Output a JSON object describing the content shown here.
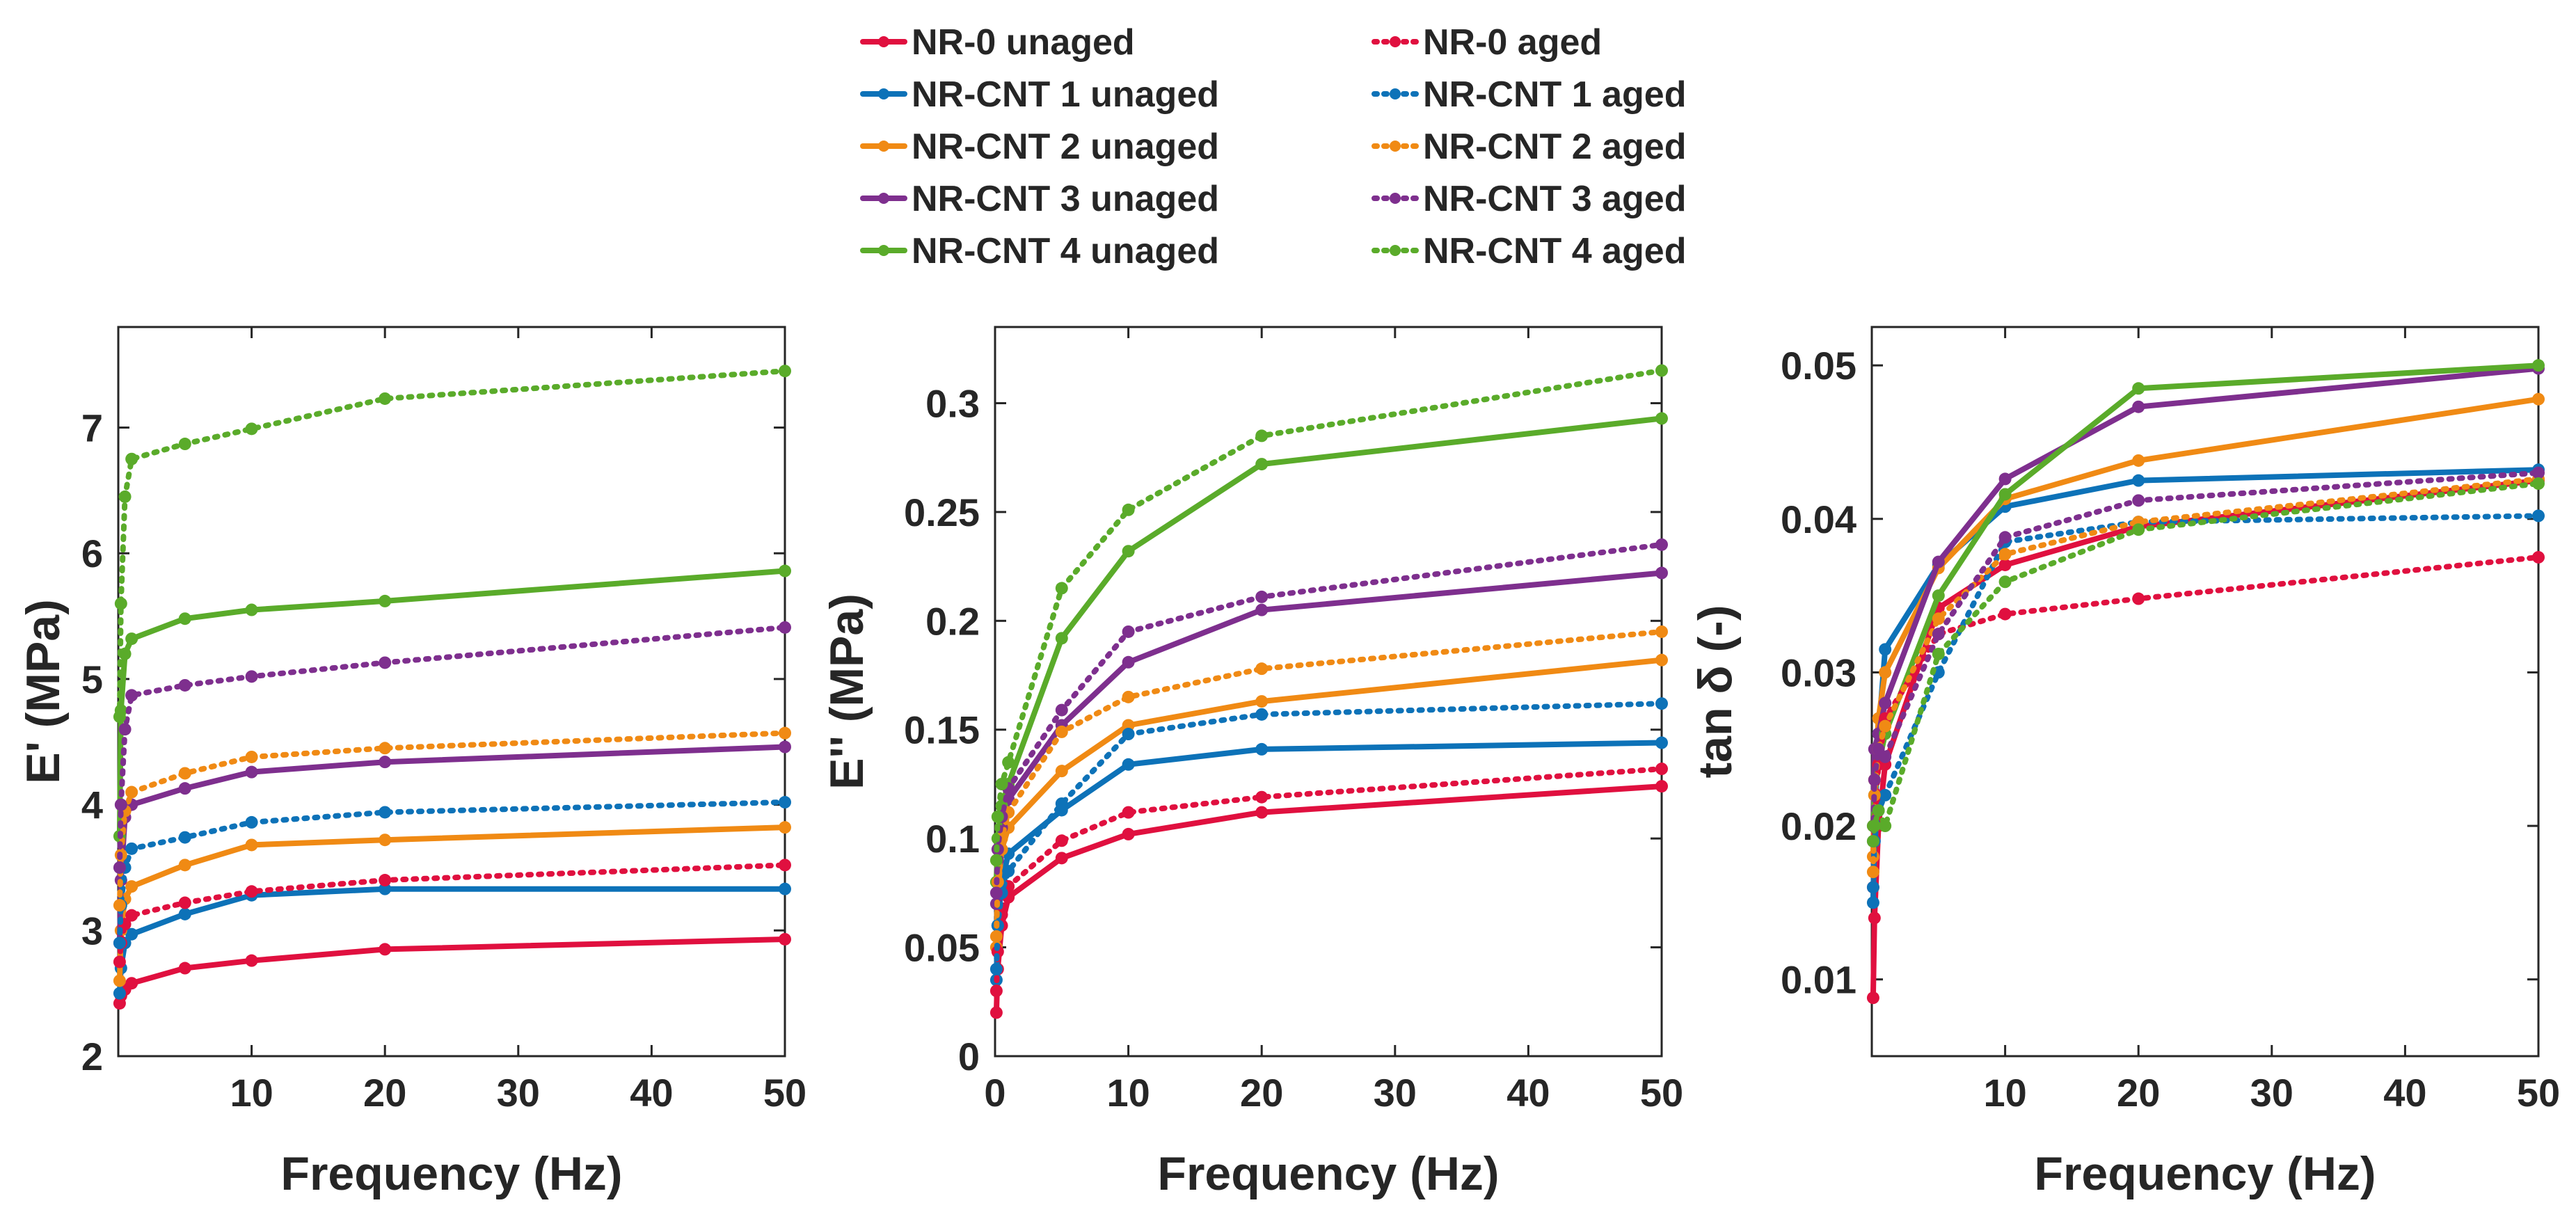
{
  "chart_data": {
    "type": "line",
    "colors": {
      "NR-0": "#e0103f",
      "NR-CNT 1": "#0d72b8",
      "NR-CNT 2": "#f08a14",
      "NR-CNT 3": "#7e2f8e",
      "NR-CNT 4": "#5aab2a"
    },
    "legend": {
      "placement": "top-center",
      "entries": [
        {
          "label": "NR-0 unaged",
          "color": "#e0103f",
          "style": "solid"
        },
        {
          "label": "NR-CNT 1 unaged",
          "color": "#0d72b8",
          "style": "solid"
        },
        {
          "label": "NR-CNT 2 unaged",
          "color": "#f08a14",
          "style": "solid"
        },
        {
          "label": "NR-CNT 3 unaged",
          "color": "#7e2f8e",
          "style": "solid"
        },
        {
          "label": "NR-CNT 4 unaged",
          "color": "#5aab2a",
          "style": "solid"
        },
        {
          "label": "NR-0 aged",
          "color": "#e0103f",
          "style": "dotted"
        },
        {
          "label": "NR-CNT 1 aged",
          "color": "#0d72b8",
          "style": "dotted"
        },
        {
          "label": "NR-CNT 2 aged",
          "color": "#f08a14",
          "style": "dotted"
        },
        {
          "label": "NR-CNT 3 aged",
          "color": "#7e2f8e",
          "style": "dotted"
        },
        {
          "label": "NR-CNT 4 aged",
          "color": "#5aab2a",
          "style": "dotted"
        }
      ]
    },
    "panels": [
      {
        "id": "storage-modulus",
        "xlabel": "Frequency (Hz)",
        "ylabel": "E' (MPa)",
        "xlim": [
          0,
          50
        ],
        "ylim": [
          2,
          7.8
        ],
        "xticks": [
          10,
          20,
          30,
          40,
          50
        ],
        "yticks": [
          2,
          3,
          4,
          5,
          6,
          7
        ],
        "x": [
          0.1,
          0.2,
          0.5,
          1,
          5,
          10,
          20,
          50
        ],
        "series": [
          {
            "name": "NR-0 unaged",
            "color": "#e0103f",
            "style": "solid",
            "values": [
              2.42,
              2.48,
              2.53,
              2.58,
              2.7,
              2.76,
              2.85,
              2.93
            ]
          },
          {
            "name": "NR-CNT 1 unaged",
            "color": "#0d72b8",
            "style": "solid",
            "values": [
              2.5,
              2.7,
              2.9,
              2.97,
              3.13,
              3.28,
              3.33,
              3.33
            ]
          },
          {
            "name": "NR-CNT 2 unaged",
            "color": "#f08a14",
            "style": "solid",
            "values": [
              2.6,
              3.0,
              3.25,
              3.35,
              3.52,
              3.68,
              3.72,
              3.82
            ]
          },
          {
            "name": "NR-CNT 3 unaged",
            "color": "#7e2f8e",
            "style": "solid",
            "values": [
              2.9,
              3.4,
              3.9,
              4.0,
              4.13,
              4.26,
              4.34,
              4.46
            ]
          },
          {
            "name": "NR-CNT 4 unaged",
            "color": "#5aab2a",
            "style": "solid",
            "values": [
              3.75,
              4.75,
              5.2,
              5.32,
              5.48,
              5.55,
              5.62,
              5.86
            ]
          },
          {
            "name": "NR-0 aged",
            "color": "#e0103f",
            "style": "dotted",
            "values": [
              2.75,
              2.9,
              3.05,
              3.12,
              3.22,
              3.31,
              3.4,
              3.52
            ]
          },
          {
            "name": "NR-CNT 1 aged",
            "color": "#0d72b8",
            "style": "dotted",
            "values": [
              2.9,
              3.2,
              3.5,
              3.65,
              3.74,
              3.86,
              3.94,
              4.02
            ]
          },
          {
            "name": "NR-CNT 2 aged",
            "color": "#f08a14",
            "style": "dotted",
            "values": [
              3.2,
              3.6,
              3.95,
              4.1,
              4.25,
              4.38,
              4.45,
              4.57
            ]
          },
          {
            "name": "NR-CNT 3 aged",
            "color": "#7e2f8e",
            "style": "dotted",
            "values": [
              3.5,
              4.0,
              4.6,
              4.87,
              4.95,
              5.02,
              5.13,
              5.41
            ]
          },
          {
            "name": "NR-CNT 4 aged",
            "color": "#5aab2a",
            "style": "dotted",
            "values": [
              4.7,
              5.6,
              6.45,
              6.75,
              6.87,
              6.99,
              7.23,
              7.45
            ]
          }
        ]
      },
      {
        "id": "loss-modulus",
        "xlabel": "Frequency (Hz)",
        "ylabel": "E'' (MPa)",
        "xlim": [
          0,
          50
        ],
        "ylim": [
          0,
          0.335
        ],
        "xticks": [
          0,
          10,
          20,
          30,
          40,
          50
        ],
        "yticks": [
          0,
          0.05,
          0.1,
          0.15,
          0.2,
          0.25,
          0.3
        ],
        "ytick_labels": [
          "0",
          "0.05",
          "0.1",
          "0.15",
          "0.2",
          "0.25",
          "0.3"
        ],
        "x": [
          0.1,
          0.2,
          0.5,
          1,
          5,
          10,
          20,
          50
        ],
        "series": [
          {
            "name": "NR-0 unaged",
            "color": "#e0103f",
            "style": "solid",
            "values": [
              0.02,
              0.04,
              0.06,
              0.073,
              0.091,
              0.102,
              0.112,
              0.124
            ]
          },
          {
            "name": "NR-CNT 1 unaged",
            "color": "#0d72b8",
            "style": "solid",
            "values": [
              0.035,
              0.06,
              0.08,
              0.093,
              0.113,
              0.134,
              0.141,
              0.144
            ]
          },
          {
            "name": "NR-CNT 2 unaged",
            "color": "#f08a14",
            "style": "solid",
            "values": [
              0.05,
              0.075,
              0.095,
              0.105,
              0.131,
              0.152,
              0.163,
              0.182
            ]
          },
          {
            "name": "NR-CNT 3 unaged",
            "color": "#7e2f8e",
            "style": "solid",
            "values": [
              0.07,
              0.09,
              0.105,
              0.118,
              0.152,
              0.181,
              0.205,
              0.222
            ]
          },
          {
            "name": "NR-CNT 4 unaged",
            "color": "#5aab2a",
            "style": "solid",
            "values": [
              0.08,
              0.1,
              0.115,
              0.125,
              0.192,
              0.232,
              0.272,
              0.293
            ]
          },
          {
            "name": "NR-0 aged",
            "color": "#e0103f",
            "style": "dotted",
            "values": [
              0.03,
              0.048,
              0.065,
              0.078,
              0.099,
              0.112,
              0.119,
              0.132
            ]
          },
          {
            "name": "NR-CNT 1 aged",
            "color": "#0d72b8",
            "style": "dotted",
            "values": [
              0.04,
              0.06,
              0.075,
              0.085,
              0.116,
              0.148,
              0.157,
              0.162
            ]
          },
          {
            "name": "NR-CNT 2 aged",
            "color": "#f08a14",
            "style": "dotted",
            "values": [
              0.055,
              0.08,
              0.1,
              0.112,
              0.149,
              0.165,
              0.178,
              0.195
            ]
          },
          {
            "name": "NR-CNT 3 aged",
            "color": "#7e2f8e",
            "style": "dotted",
            "values": [
              0.075,
              0.095,
              0.11,
              0.123,
              0.159,
              0.195,
              0.211,
              0.235
            ]
          },
          {
            "name": "NR-CNT 4 aged",
            "color": "#5aab2a",
            "style": "dotted",
            "values": [
              0.09,
              0.11,
              0.125,
              0.135,
              0.215,
              0.251,
              0.285,
              0.315
            ]
          }
        ]
      },
      {
        "id": "tan-delta",
        "xlabel": "Frequency (Hz)",
        "ylabel": "tan δ (-)",
        "xlim": [
          0,
          50
        ],
        "ylim": [
          0.005,
          0.0525
        ],
        "xticks": [
          10,
          20,
          30,
          40,
          50
        ],
        "yticks": [
          0.01,
          0.02,
          0.03,
          0.04,
          0.05
        ],
        "ytick_labels": [
          "0.01",
          "0.02",
          "0.03",
          "0.04",
          "0.05"
        ],
        "x": [
          0.1,
          0.2,
          0.5,
          1,
          5,
          10,
          20,
          50
        ],
        "series": [
          {
            "name": "NR-0 unaged",
            "color": "#e0103f",
            "style": "solid",
            "values": [
              0.0088,
              0.014,
              0.02,
              0.024,
              0.0342,
              0.037,
              0.0395,
              0.0425
            ]
          },
          {
            "name": "NR-CNT 1 unaged",
            "color": "#0d72b8",
            "style": "solid",
            "values": [
              0.015,
              0.02,
              0.026,
              0.0315,
              0.037,
              0.0408,
              0.0425,
              0.0432
            ]
          },
          {
            "name": "NR-CNT 2 unaged",
            "color": "#f08a14",
            "style": "solid",
            "values": [
              0.018,
              0.023,
              0.027,
              0.03,
              0.0368,
              0.0413,
              0.0438,
              0.0478
            ]
          },
          {
            "name": "NR-CNT 3 unaged",
            "color": "#7e2f8e",
            "style": "solid",
            "values": [
              0.02,
              0.025,
              0.026,
              0.028,
              0.0372,
              0.0426,
              0.0473,
              0.0498
            ]
          },
          {
            "name": "NR-CNT 4 unaged",
            "color": "#5aab2a",
            "style": "solid",
            "values": [
              0.02,
              0.022,
              0.024,
              0.026,
              0.035,
              0.0416,
              0.0485,
              0.05
            ]
          },
          {
            "name": "NR-0 aged",
            "color": "#e0103f",
            "style": "dotted",
            "values": [
              0.016,
              0.02,
              0.024,
              0.027,
              0.0325,
              0.0338,
              0.0348,
              0.0375
            ]
          },
          {
            "name": "NR-CNT 1 aged",
            "color": "#0d72b8",
            "style": "dotted",
            "values": [
              0.016,
              0.019,
              0.021,
              0.022,
              0.03,
              0.0385,
              0.0398,
              0.0402
            ]
          },
          {
            "name": "NR-CNT 2 aged",
            "color": "#f08a14",
            "style": "dotted",
            "values": [
              0.017,
              0.022,
              0.025,
              0.0265,
              0.0335,
              0.0377,
              0.0398,
              0.0426
            ]
          },
          {
            "name": "NR-CNT 3 aged",
            "color": "#7e2f8e",
            "style": "dotted",
            "values": [
              0.019,
              0.023,
              0.025,
              0.0245,
              0.0325,
              0.0388,
              0.0412,
              0.043
            ]
          },
          {
            "name": "NR-CNT 4 aged",
            "color": "#5aab2a",
            "style": "dotted",
            "values": [
              0.019,
              0.02,
              0.021,
              0.02,
              0.0312,
              0.0359,
              0.0393,
              0.0423
            ]
          }
        ]
      }
    ]
  }
}
